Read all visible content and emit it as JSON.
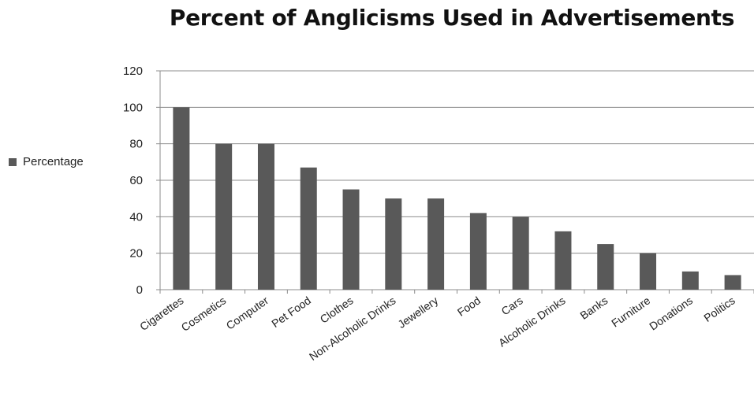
{
  "chart_data": {
    "type": "bar",
    "title": "Percent of Anglicisms Used in Advertisements",
    "xlabel": "",
    "ylabel": "",
    "ylim": [
      0,
      120
    ],
    "yticks": [
      "0",
      "20",
      "40",
      "60",
      "80",
      "100",
      "120"
    ],
    "grid": true,
    "legend_position": "left",
    "categories": [
      "Cigarettes",
      "Cosmetics",
      "Computer",
      "Pet Food",
      "Clothes",
      "Non-Alcoholic Drinks",
      "Jewellery",
      "Food",
      "Cars",
      "Alcoholic Drinks",
      "Banks",
      "Furniture",
      "Donations",
      "Politics"
    ],
    "series": [
      {
        "name": "Percentage",
        "color": "#595959",
        "values": [
          100,
          80,
          80,
          67,
          55,
          50,
          50,
          42,
          40,
          32,
          25,
          20,
          10,
          8
        ]
      }
    ]
  }
}
